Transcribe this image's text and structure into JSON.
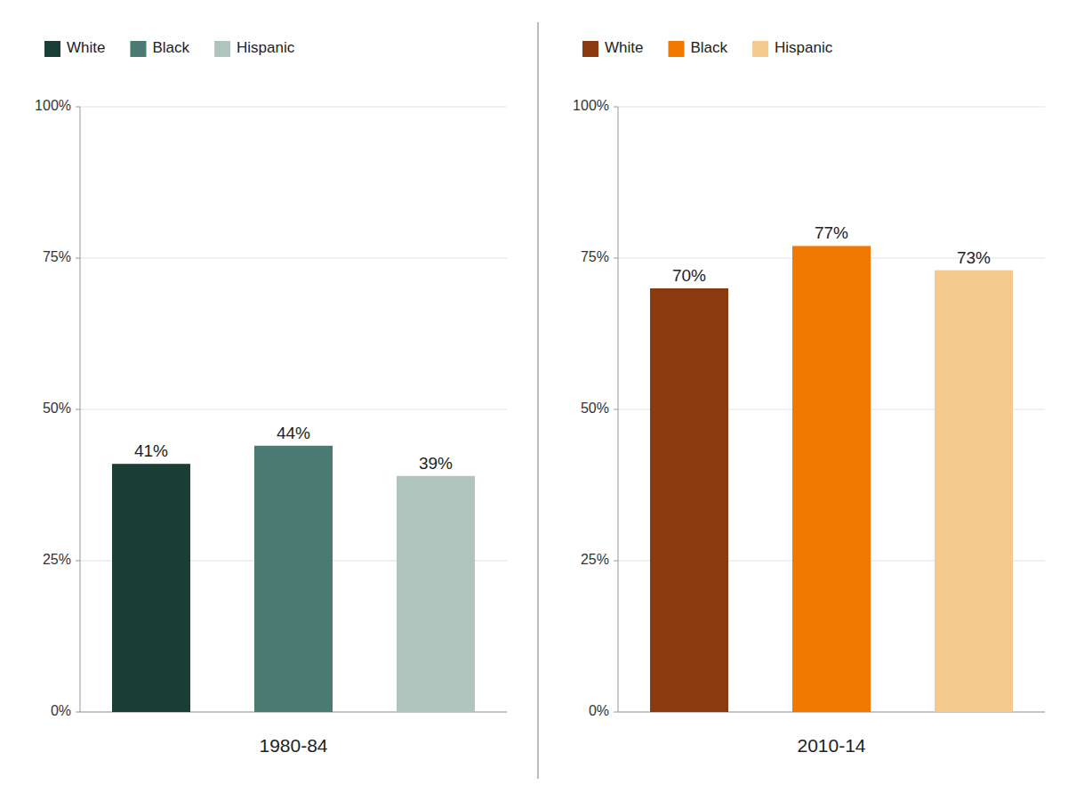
{
  "chart_data": [
    {
      "type": "bar",
      "xlabel": "1980-84",
      "categories": [
        "White",
        "Black",
        "Hispanic"
      ],
      "values": [
        41,
        44,
        39
      ],
      "value_labels": [
        "41%",
        "44%",
        "39%"
      ],
      "colors": [
        "#1a3d35",
        "#4a7a72",
        "#b0c4be"
      ],
      "data_labels": true,
      "ylim": [
        0,
        100
      ],
      "yticks": [
        {
          "value": 0,
          "label": "0%"
        },
        {
          "value": 25,
          "label": "25%"
        },
        {
          "value": 50,
          "label": "50%"
        },
        {
          "value": 75,
          "label": "75%"
        },
        {
          "value": 100,
          "label": "100%"
        }
      ],
      "grid": true,
      "legend": "upper left",
      "tick_labels": "y"
    },
    {
      "type": "bar",
      "xlabel": "2010-14",
      "categories": [
        "White",
        "Black",
        "Hispanic"
      ],
      "values": [
        70,
        77,
        73
      ],
      "value_labels": [
        "70%",
        "77%",
        "73%"
      ],
      "colors": [
        "#8b3a0f",
        "#f07800",
        "#f5c990"
      ],
      "data_labels": true,
      "ylim": [
        0,
        100
      ],
      "yticks": [
        {
          "value": 0,
          "label": "0%"
        },
        {
          "value": 25,
          "label": "25%"
        },
        {
          "value": 50,
          "label": "50%"
        },
        {
          "value": 75,
          "label": "75%"
        },
        {
          "value": 100,
          "label": "100%"
        }
      ],
      "grid": true,
      "legend": "upper left",
      "tick_labels": "y"
    }
  ]
}
